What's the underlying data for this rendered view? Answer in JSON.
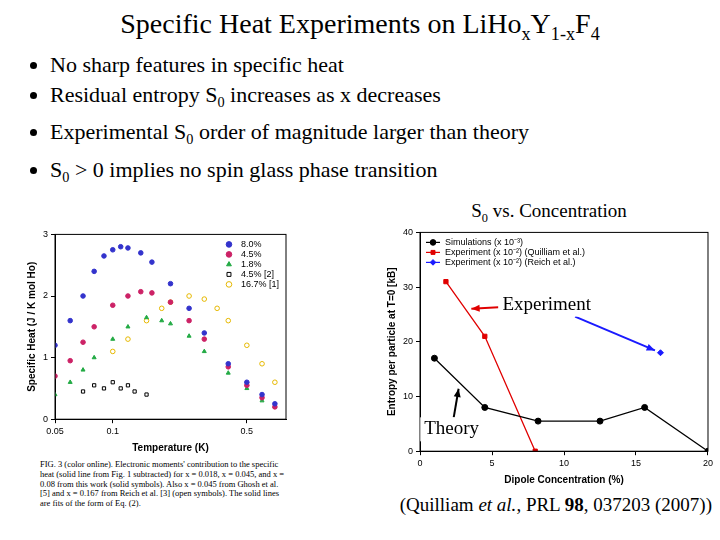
{
  "slide": {
    "title": [
      "Specific Heat Experiments on LiHo",
      {
        "sub": "x"
      },
      "Y",
      {
        "sub": "1-x"
      },
      "F",
      {
        "sub": "4"
      }
    ],
    "bullets": [
      [
        "No sharp features in specific heat"
      ],
      [
        "Residual entropy S",
        {
          "sub": "0"
        },
        " increases as x decreases"
      ],
      [
        "Experimental S",
        {
          "sub": "0"
        },
        " order of magnitude larger than theory"
      ],
      [
        "S",
        {
          "sub": "0"
        },
        " > 0 implies no spin glass phase transition"
      ]
    ],
    "citation": [
      "(Quilliam ",
      {
        "i": "et al."
      },
      ", PRL ",
      {
        "b": "98"
      },
      ", 037203 (2007))"
    ]
  },
  "chart_data": [
    {
      "type": "scatter",
      "x_label": "Temperature (K)",
      "y_label": "Specific Heat (J / K mol Ho)",
      "log": "x",
      "xlim": [
        0.05,
        0.8
      ],
      "xticks": [
        0.05,
        0.1,
        0.5
      ],
      "ylim": [
        0,
        3
      ],
      "yticks": [
        0,
        1,
        2,
        3
      ],
      "grid": false,
      "legend": "top-right",
      "caption": "FIG. 3 (color online). Electronic moments' contribution to the specific heat (solid line from Fig. 1 subtracted) for x = 0.018, x = 0.045, and x = 0.08 from this work (solid symbols). Also x = 0.045 from Ghosh et al. [5] and x = 0.167 from Reich et al. [3] (open symbols). The solid lines are fits of the form of Eq. (2).",
      "series": [
        {
          "name": "8.0%",
          "color": "#3333cc",
          "marker": "circle",
          "x": [
            0.05,
            0.06,
            0.07,
            0.08,
            0.09,
            0.1,
            0.11,
            0.12,
            0.14,
            0.16,
            0.2,
            0.25,
            0.3,
            0.4,
            0.5,
            0.6,
            0.7
          ],
          "values": [
            1.2,
            1.6,
            2.0,
            2.4,
            2.65,
            2.75,
            2.8,
            2.78,
            2.7,
            2.55,
            2.2,
            1.8,
            1.4,
            0.9,
            0.6,
            0.4,
            0.25
          ]
        },
        {
          "name": "4.5%",
          "color": "#cc2266",
          "marker": "circle",
          "x": [
            0.05,
            0.06,
            0.07,
            0.08,
            0.1,
            0.12,
            0.14,
            0.16,
            0.2,
            0.25,
            0.3,
            0.4,
            0.5,
            0.6,
            0.7
          ],
          "values": [
            0.7,
            0.95,
            1.25,
            1.5,
            1.85,
            2.0,
            2.07,
            2.05,
            1.9,
            1.6,
            1.3,
            0.85,
            0.55,
            0.35,
            0.2
          ]
        },
        {
          "name": "1.8%",
          "color": "#22aa44",
          "marker": "triangle",
          "x": [
            0.05,
            0.06,
            0.07,
            0.08,
            0.1,
            0.12,
            0.15,
            0.18,
            0.2,
            0.25,
            0.3,
            0.4,
            0.5,
            0.6,
            0.7
          ],
          "values": [
            0.4,
            0.6,
            0.8,
            1.0,
            1.3,
            1.5,
            1.65,
            1.6,
            1.55,
            1.35,
            1.1,
            0.75,
            0.5,
            0.3,
            0.2
          ]
        },
        {
          "name": "4.5% [2]",
          "color": "#000000",
          "marker": "open_square",
          "x": [
            0.07,
            0.08,
            0.09,
            0.1,
            0.11,
            0.12,
            0.13,
            0.15
          ],
          "values": [
            0.45,
            0.55,
            0.5,
            0.6,
            0.5,
            0.55,
            0.45,
            0.4
          ]
        },
        {
          "name": "16.7% [1]",
          "color": "#e6b800",
          "marker": "open_circle",
          "x": [
            0.1,
            0.12,
            0.15,
            0.18,
            0.2,
            0.25,
            0.3,
            0.35,
            0.4,
            0.5,
            0.6,
            0.7
          ],
          "values": [
            1.1,
            1.3,
            1.6,
            1.8,
            1.9,
            2.0,
            1.95,
            1.8,
            1.6,
            1.2,
            0.9,
            0.6
          ]
        }
      ]
    },
    {
      "type": "line",
      "title": [
        "S",
        {
          "sub": "0"
        },
        " vs. Concentration"
      ],
      "x_label": "Dipole Concentration (%)",
      "y_label": "Entropy per particle at T=0 [kB]",
      "xlim": [
        0,
        20
      ],
      "xticks": [
        0,
        5,
        10,
        15,
        20
      ],
      "ylim": [
        0,
        40
      ],
      "yticks": [
        0,
        10,
        20,
        30,
        40
      ],
      "grid": false,
      "legend": "top-left",
      "annotations": [
        {
          "text": "Experiment",
          "points_to": [
            "Experiment (x 10⁻²) (Quilliam et al.)",
            "Experiment (x 10⁻²) (Reich et al.)"
          ]
        },
        {
          "text": "Theory",
          "points_to": [
            "Simulations (x 10⁻³)"
          ]
        }
      ],
      "series": [
        {
          "name": "Simulations (x 10⁻³)",
          "color": "#000000",
          "marker": "circle",
          "line_style": "solid",
          "x": [
            1,
            4.5,
            8.2,
            12.5,
            15.6,
            20
          ],
          "values": [
            17,
            8,
            5.5,
            5.5,
            8,
            0
          ]
        },
        {
          "name": "Experiment (x 10⁻²) (Quilliam et al.)",
          "color": "#e00000",
          "marker": "square",
          "line_style": "solid",
          "x": [
            1.8,
            4.5,
            8.0
          ],
          "values": [
            31,
            21,
            0
          ]
        },
        {
          "name": "Experiment (x 10⁻²) (Reich et al.)",
          "color": "#1a1aff",
          "marker": "diamond",
          "line_style": "solid",
          "x": [
            16.7
          ],
          "values": [
            18
          ]
        }
      ]
    }
  ]
}
